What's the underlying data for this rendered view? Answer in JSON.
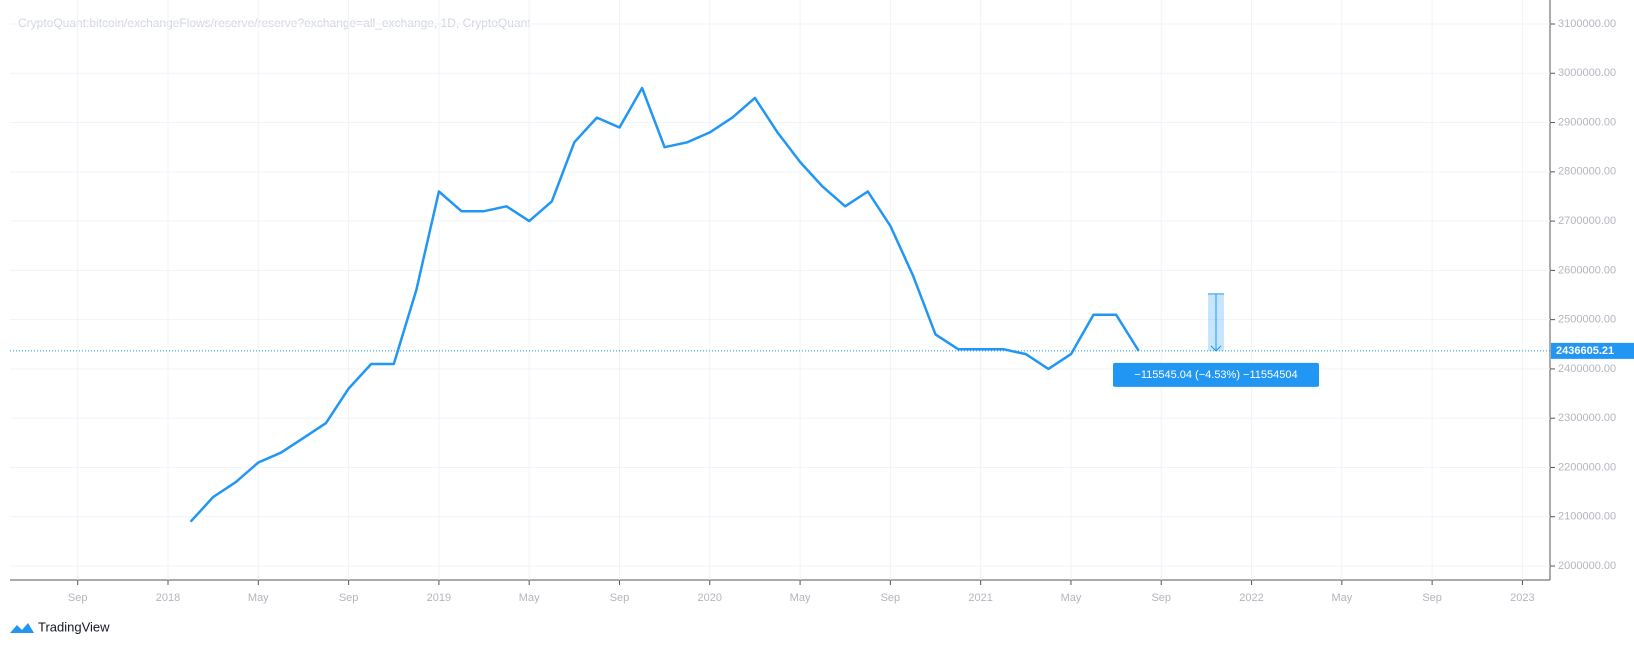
{
  "chart_data": {
    "type": "line",
    "title": "CryptoQuant:bitcoin/exchangeFlows/reserve/reserve?exchange=all_exchange, 1D, CryptoQuant",
    "color": "#2196f3",
    "x": [
      "2018-02",
      "2018-03",
      "2018-04",
      "2018-05",
      "2018-06",
      "2018-07",
      "2018-08",
      "2018-09",
      "2018-10",
      "2018-11",
      "2018-12",
      "2019-01",
      "2019-02",
      "2019-03",
      "2019-04",
      "2019-05",
      "2019-06",
      "2019-07",
      "2019-08",
      "2019-09",
      "2019-10",
      "2019-11",
      "2019-12",
      "2020-01",
      "2020-02",
      "2020-03",
      "2020-04",
      "2020-05",
      "2020-06",
      "2020-07",
      "2020-08",
      "2020-09",
      "2020-10",
      "2020-11",
      "2020-12",
      "2021-01",
      "2021-02",
      "2021-03",
      "2021-04",
      "2021-05",
      "2021-06",
      "2021-07",
      "2021-08"
    ],
    "values": [
      2090000,
      2140000,
      2170000,
      2210000,
      2230000,
      2260000,
      2290000,
      2360000,
      2410000,
      2410000,
      2560000,
      2760000,
      2720000,
      2720000,
      2730000,
      2700000,
      2740000,
      2860000,
      2910000,
      2890000,
      2970000,
      2850000,
      2860000,
      2880000,
      2910000,
      2950000,
      2880000,
      2820000,
      2770000,
      2730000,
      2760000,
      2690000,
      2590000,
      2470000,
      2440000,
      2440000,
      2440000,
      2430000,
      2400000,
      2430000,
      2510000,
      2510000,
      2436605.21
    ],
    "xlim": [
      "2017-06",
      "2023-02"
    ],
    "xticks": [
      {
        "value": "2017-09",
        "label": "Sep"
      },
      {
        "value": "2018-01",
        "label": "2018"
      },
      {
        "value": "2018-05",
        "label": "May"
      },
      {
        "value": "2018-09",
        "label": "Sep"
      },
      {
        "value": "2019-01",
        "label": "2019"
      },
      {
        "value": "2019-05",
        "label": "May"
      },
      {
        "value": "2019-09",
        "label": "Sep"
      },
      {
        "value": "2020-01",
        "label": "2020"
      },
      {
        "value": "2020-05",
        "label": "May"
      },
      {
        "value": "2020-09",
        "label": "Sep"
      },
      {
        "value": "2021-01",
        "label": "2021"
      },
      {
        "value": "2021-05",
        "label": "May"
      },
      {
        "value": "2021-09",
        "label": "Sep"
      },
      {
        "value": "2022-01",
        "label": "2022"
      },
      {
        "value": "2022-05",
        "label": "May"
      },
      {
        "value": "2022-09",
        "label": "Sep"
      },
      {
        "value": "2023-01",
        "label": "2023"
      }
    ],
    "ylim": [
      1971600,
      3128400
    ],
    "yticks": [
      {
        "value": 2000000,
        "label": "2000000.00"
      },
      {
        "value": 2100000,
        "label": "2100000.00"
      },
      {
        "value": 2200000,
        "label": "2200000.00"
      },
      {
        "value": 2300000,
        "label": "2300000.00"
      },
      {
        "value": 2400000,
        "label": "2400000.00"
      },
      {
        "value": 2500000,
        "label": "2500000.00"
      },
      {
        "value": 2600000,
        "label": "2600000.00"
      },
      {
        "value": 2700000,
        "label": "2700000.00"
      },
      {
        "value": 2800000,
        "label": "2800000.00"
      },
      {
        "value": 2900000,
        "label": "2900000.00"
      },
      {
        "value": 3000000,
        "label": "3000000.00"
      },
      {
        "value": 3100000,
        "label": "3100000.00"
      }
    ],
    "grid": true,
    "measure": {
      "from": 2552150.25,
      "to": 2436605.21,
      "label": "−115545.04 (−4.53%) −11554504"
    }
  },
  "brand": "TradingView"
}
